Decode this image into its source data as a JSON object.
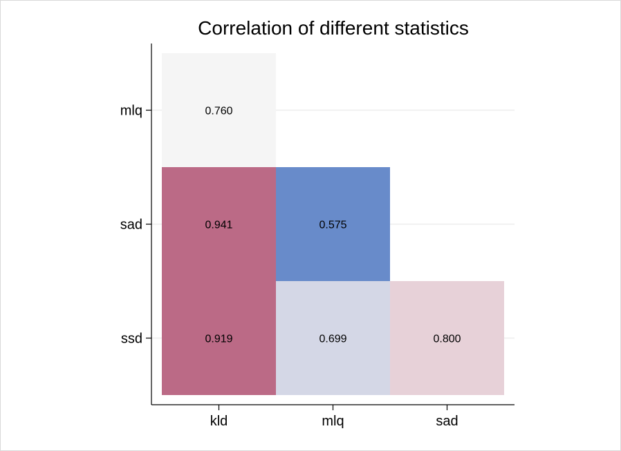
{
  "chart_data": {
    "type": "heatmap",
    "title": "Correlation of different statistics",
    "x_categories": [
      "kld",
      "mlq",
      "sad"
    ],
    "y_categories": [
      "mlq",
      "sad",
      "ssd"
    ],
    "cells": [
      {
        "x": "kld",
        "y": "mlq",
        "value": 0.76,
        "label": "0.760",
        "color": "#f5f5f5"
      },
      {
        "x": "kld",
        "y": "sad",
        "value": 0.941,
        "label": "0.941",
        "color": "#bb6a86"
      },
      {
        "x": "mlq",
        "y": "sad",
        "value": 0.575,
        "label": "0.575",
        "color": "#688bca"
      },
      {
        "x": "kld",
        "y": "ssd",
        "value": 0.919,
        "label": "0.919",
        "color": "#bb6a86"
      },
      {
        "x": "mlq",
        "y": "ssd",
        "value": 0.699,
        "label": "0.699",
        "color": "#d4d7e6"
      },
      {
        "x": "sad",
        "y": "ssd",
        "value": 0.8,
        "label": "0.800",
        "color": "#e7d1d8"
      }
    ],
    "grid": true,
    "legend": "none"
  }
}
